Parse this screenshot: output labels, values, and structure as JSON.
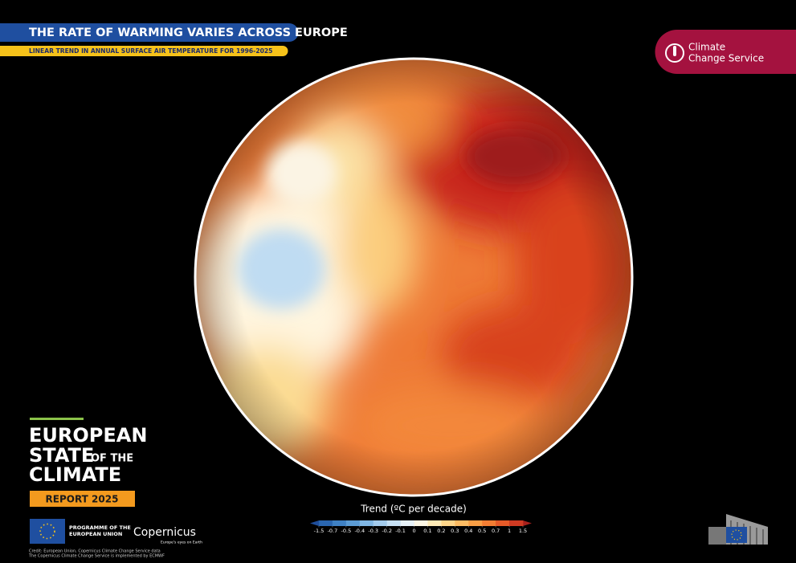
{
  "header": {
    "title": "THE RATE OF WARMING VARIES ACROSS EUROPE",
    "subtitle": "LINEAR TREND IN ANNUAL SURFACE AIR TEMPERATURE FOR 1996-2025"
  },
  "logo": {
    "line1": "Climate",
    "line2": "Change Service"
  },
  "report": {
    "line1": "EUROPEAN",
    "line2": "STATE",
    "line3": "OF THE",
    "line4": "CLIMATE",
    "badge": "REPORT 2025"
  },
  "colorbar": {
    "title": "Trend (ºC per decade)",
    "ticks": [
      -1.5,
      -0.7,
      -0.5,
      -0.4,
      -0.3,
      -0.2,
      -0.1,
      0,
      0.1,
      0.2,
      0.3,
      0.4,
      0.5,
      0.7,
      1,
      1.5
    ],
    "colors": [
      "#1f4e9c",
      "#2a66b0",
      "#3f81c4",
      "#5b9bd4",
      "#7fb5e2",
      "#a3cbec",
      "#c6e0f4",
      "#e6f1f8",
      "#fbf6e4",
      "#fde9b5",
      "#fdd58a",
      "#fcbb63",
      "#f99e45",
      "#f37d33",
      "#e65a28",
      "#cf3a22",
      "#a8201c"
    ]
  },
  "footer": {
    "eu_line1": "PROGRAMME OF THE",
    "eu_line2": "EUROPEAN UNION",
    "copernicus": "Copernicus",
    "tagline": "Europe's eyes on Earth",
    "credit1": "Credit: European Union, Copernicus Climate Change Service data",
    "credit2": "The Copernicus Climate Change Service is implemented by ECMWF"
  }
}
